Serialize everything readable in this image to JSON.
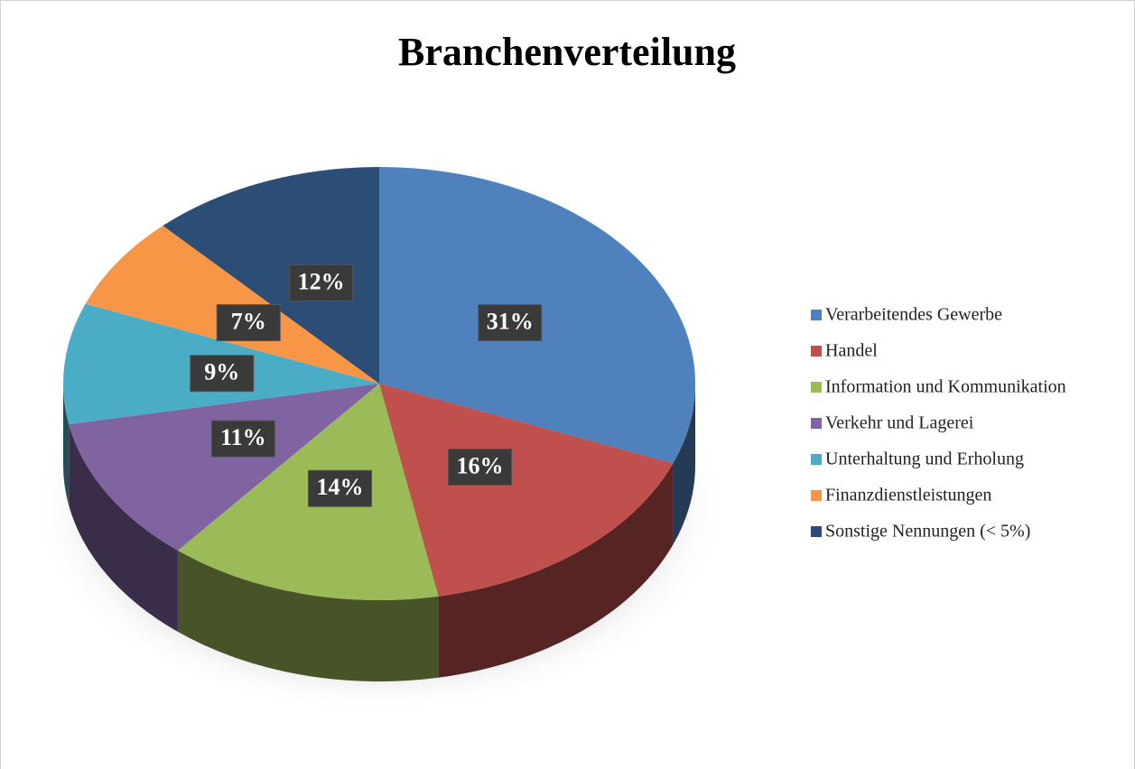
{
  "chart_data": {
    "type": "pie",
    "title": "Branchenverteilung",
    "categories": [
      "Verarbeitendes Gewerbe",
      "Handel",
      "Information und Kommunikation",
      "Verkehr und Lagerei",
      "Unterhaltung und Erholung",
      "Finanzdienstleistungen",
      "Sonstige Nennungen (< 5%)"
    ],
    "values": [
      31,
      16,
      14,
      11,
      9,
      7,
      12
    ],
    "value_labels": [
      "31%",
      "16%",
      "14%",
      "11%",
      "9%",
      "7%",
      "12%"
    ],
    "colors": [
      "#4f81bd",
      "#c0504d",
      "#9bbb59",
      "#8064a2",
      "#4bacc6",
      "#f79646",
      "#2c4d75"
    ],
    "legend": "right"
  }
}
